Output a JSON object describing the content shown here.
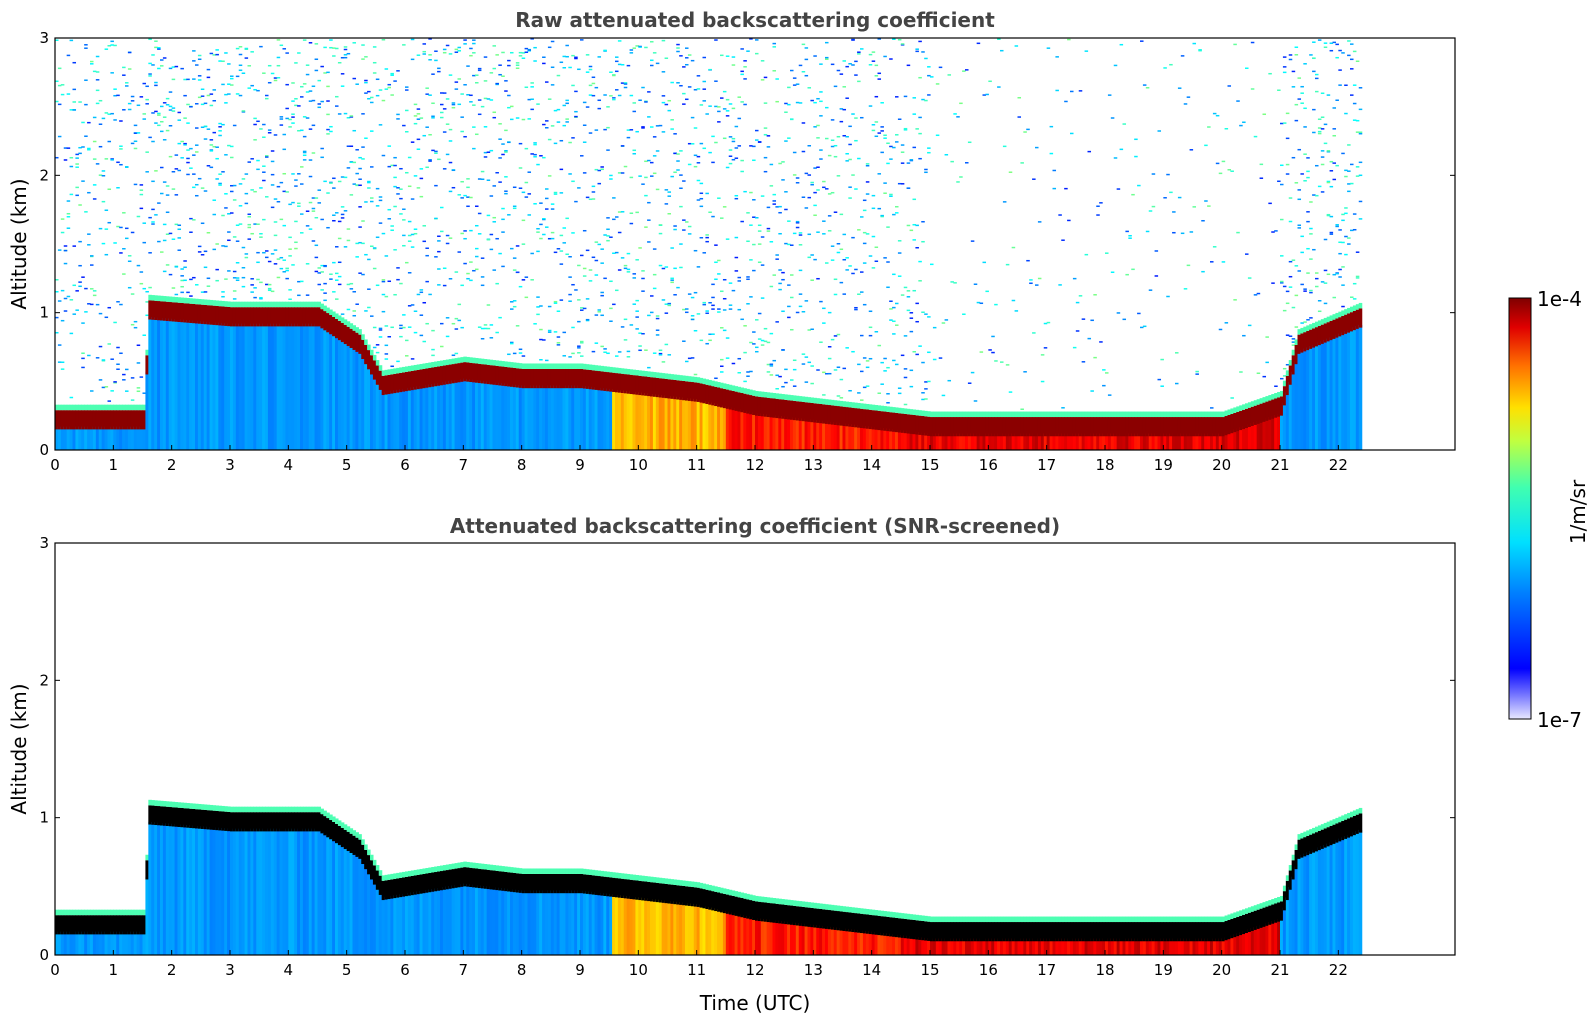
{
  "colors": {
    "jet_low": "#00007f",
    "jet_high": "#7f0000",
    "background": "#ffffff",
    "screened_low_cloud": "#000000"
  },
  "colorbar": {
    "label": "1/m/sr",
    "min_label": "1e-7",
    "max_label": "1e-4",
    "scale": "log",
    "colormap": "jet"
  },
  "chart_data": [
    {
      "type": "heatmap",
      "title": "Raw attenuated backscattering coefficient",
      "ylabel": "Altitude (km)",
      "xlabel": "",
      "xlim": [
        0,
        24
      ],
      "ylim": [
        0,
        3
      ],
      "x_ticks": [
        "0",
        "1",
        "2",
        "3",
        "4",
        "5",
        "6",
        "7",
        "8",
        "9",
        "10",
        "11",
        "12",
        "13",
        "14",
        "15",
        "16",
        "17",
        "18",
        "19",
        "20",
        "21",
        "22"
      ],
      "y_ticks": [
        "0",
        "1",
        "2",
        "3"
      ],
      "data_x_range": [
        0,
        22.4
      ],
      "layer_top_km": [
        [
          0,
          0.25
        ],
        [
          1.5,
          0.25
        ],
        [
          1.6,
          1.05
        ],
        [
          3,
          1.0
        ],
        [
          4.5,
          1.0
        ],
        [
          5.2,
          0.8
        ],
        [
          5.6,
          0.5
        ],
        [
          7,
          0.6
        ],
        [
          8,
          0.55
        ],
        [
          9,
          0.55
        ],
        [
          10,
          0.5
        ],
        [
          11,
          0.45
        ],
        [
          12,
          0.35
        ],
        [
          13,
          0.3
        ],
        [
          14,
          0.25
        ],
        [
          15,
          0.2
        ],
        [
          16,
          0.2
        ],
        [
          17,
          0.2
        ],
        [
          18,
          0.2
        ],
        [
          19,
          0.2
        ],
        [
          20,
          0.2
        ],
        [
          21,
          0.35
        ],
        [
          21.3,
          0.8
        ],
        [
          22.4,
          1.0
        ]
      ]
    },
    {
      "type": "heatmap",
      "title": "Attenuated backscattering coefficient (SNR-screened)",
      "ylabel": "Altitude (km)",
      "xlabel": "Time (UTC)",
      "xlim": [
        0,
        24
      ],
      "ylim": [
        0,
        3
      ],
      "x_ticks": [
        "0",
        "1",
        "2",
        "3",
        "4",
        "5",
        "6",
        "7",
        "8",
        "9",
        "10",
        "11",
        "12",
        "13",
        "14",
        "15",
        "16",
        "17",
        "18",
        "19",
        "20",
        "21",
        "22"
      ],
      "y_ticks": [
        "0",
        "1",
        "2",
        "3"
      ],
      "data_x_range": [
        0,
        22.4
      ],
      "layer_top_km": [
        [
          0,
          0.25
        ],
        [
          1.5,
          0.25
        ],
        [
          1.6,
          1.05
        ],
        [
          3,
          1.0
        ],
        [
          4.5,
          1.0
        ],
        [
          5.2,
          0.8
        ],
        [
          5.6,
          0.5
        ],
        [
          7,
          0.6
        ],
        [
          8,
          0.55
        ],
        [
          9,
          0.55
        ],
        [
          10,
          0.5
        ],
        [
          11,
          0.45
        ],
        [
          12,
          0.35
        ],
        [
          13,
          0.3
        ],
        [
          14,
          0.25
        ],
        [
          15,
          0.2
        ],
        [
          16,
          0.2
        ],
        [
          17,
          0.2
        ],
        [
          18,
          0.2
        ],
        [
          19,
          0.2
        ],
        [
          20,
          0.2
        ],
        [
          21,
          0.35
        ],
        [
          21.3,
          0.8
        ],
        [
          22.4,
          1.0
        ]
      ]
    }
  ]
}
